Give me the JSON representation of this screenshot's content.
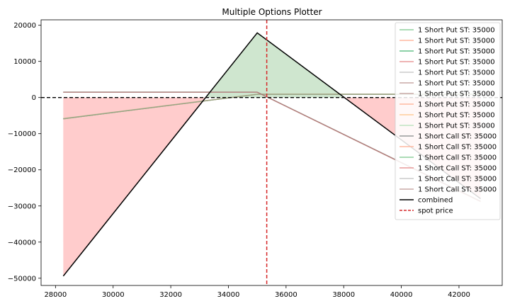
{
  "chart_data": {
    "type": "line",
    "title": "Multiple Options Plotter",
    "xlabel": "",
    "ylabel": "",
    "xlim": [
      27500,
      43500
    ],
    "ylim": [
      -52000,
      21500
    ],
    "x_ticks": [
      28000,
      30000,
      32000,
      34000,
      36000,
      38000,
      40000,
      42000
    ],
    "y_ticks": [
      20000,
      10000,
      0,
      -10000,
      -20000,
      -30000,
      -40000,
      -50000
    ],
    "x_tick_labels": [
      "28000",
      "30000",
      "32000",
      "34000",
      "36000",
      "38000",
      "40000",
      "42000"
    ],
    "y_tick_labels": [
      "20000",
      "10000",
      "0",
      "−10000",
      "−20000",
      "−30000",
      "−40000",
      "−50000"
    ],
    "zero_line": true,
    "grid": false,
    "legend_position": "top-right",
    "spot_price": 35330,
    "colors": {
      "profit_fill": "#cfe6cf",
      "loss_fill": "#ffcccc",
      "combined": "#000000",
      "spot": "#d62728",
      "put_line": "#7aa77a",
      "call_line": "#a06060"
    },
    "series": [
      {
        "name": "1 Short Put ST: 35000",
        "color": "#8fd19e",
        "x": [
          28270,
          35000,
          42750
        ],
        "y": [
          -5900,
          900,
          900
        ]
      },
      {
        "name": "1 Short Put ST: 35000",
        "color": "#ffb8a0",
        "x": [
          28270,
          35000,
          42750
        ],
        "y": [
          -5800,
          950,
          950
        ]
      },
      {
        "name": "1 Short Put ST: 35000",
        "color": "#66c28a",
        "x": [
          28270,
          35000,
          42750
        ],
        "y": [
          -5850,
          920,
          920
        ]
      },
      {
        "name": "1 Short Put ST: 35000",
        "color": "#e89a9a",
        "x": [
          28270,
          35000,
          42750
        ],
        "y": [
          -5900,
          900,
          900
        ]
      },
      {
        "name": "1 Short Put ST: 35000",
        "color": "#cccccc",
        "x": [
          28270,
          35000,
          42750
        ],
        "y": [
          -5800,
          950,
          950
        ]
      },
      {
        "name": "1 Short Put ST: 35000",
        "color": "#c9a9a6",
        "x": [
          28270,
          35000,
          42750
        ],
        "y": [
          -5850,
          920,
          920
        ]
      },
      {
        "name": "1 Short Put ST: 35000",
        "color": "#8fd19e",
        "x": [
          28270,
          35000,
          42750
        ],
        "y": [
          -5900,
          900,
          900
        ]
      },
      {
        "name": "1 Short Put ST: 35000",
        "color": "#ffb8a0",
        "x": [
          28270,
          35000,
          42750
        ],
        "y": [
          -5800,
          950,
          950
        ]
      },
      {
        "name": "1 Short Put ST: 35000",
        "color": "#66c28a",
        "x": [
          28270,
          35000,
          42750
        ],
        "y": [
          -5850,
          920,
          920
        ]
      },
      {
        "name": "1 Short Put ST: 35000",
        "color": "#e89a9a",
        "x": [
          28270,
          35000,
          42750
        ],
        "y": [
          -5900,
          900,
          900
        ]
      },
      {
        "name": "1 Short Call ST: 35000",
        "color": "#999999",
        "x": [
          28270,
          35000,
          42750
        ],
        "y": [
          1500,
          1500,
          -28700
        ]
      },
      {
        "name": "1 Short Call ST: 35000",
        "color": "#ffb8a0",
        "x": [
          28270,
          35000,
          42750
        ],
        "y": [
          1450,
          1450,
          -28800
        ]
      },
      {
        "name": "1 Short Call ST: 35000",
        "color": "#8fd19e",
        "x": [
          28270,
          35000,
          42750
        ],
        "y": [
          1500,
          1500,
          -28700
        ]
      },
      {
        "name": "1 Short Call ST: 35000",
        "color": "#e89a9a",
        "x": [
          28270,
          35000,
          42750
        ],
        "y": [
          1450,
          1450,
          -28800
        ]
      },
      {
        "name": "1 Short Call ST: 35000",
        "color": "#cccccc",
        "x": [
          28270,
          35000,
          42750
        ],
        "y": [
          1500,
          1500,
          -28700
        ]
      },
      {
        "name": "1 Short Call ST: 35000",
        "color": "#c9a9a6",
        "x": [
          28270,
          35000,
          42750
        ],
        "y": [
          1450,
          1450,
          -28800
        ]
      }
    ],
    "combined": {
      "name": "combined",
      "color": "#000000",
      "x": [
        28270,
        35000,
        42750
      ],
      "y": [
        -49400,
        17900,
        -28000
      ]
    },
    "legend": [
      {
        "label": "1 Short Put ST: 35000",
        "color": "#8fd19e",
        "style": "solid"
      },
      {
        "label": "1 Short Put ST: 35000",
        "color": "#ffb8a0",
        "style": "solid"
      },
      {
        "label": "1 Short Put ST: 35000",
        "color": "#66c28a",
        "style": "solid"
      },
      {
        "label": "1 Short Put ST: 35000",
        "color": "#e89a9a",
        "style": "solid"
      },
      {
        "label": "1 Short Put ST: 35000",
        "color": "#cccccc",
        "style": "solid"
      },
      {
        "label": "1 Short Put ST: 35000",
        "color": "#c9a9a6",
        "style": "solid"
      },
      {
        "label": "1 Short Put ST: 35000",
        "color": "#c9a9a6",
        "style": "solid"
      },
      {
        "label": "1 Short Put ST: 35000",
        "color": "#ffb8a0",
        "style": "solid"
      },
      {
        "label": "1 Short Put ST: 35000",
        "color": "#ffcc99",
        "style": "solid"
      },
      {
        "label": "1 Short Put ST: 35000",
        "color": "#bfe3bf",
        "style": "solid"
      },
      {
        "label": "1 Short Call ST: 35000",
        "color": "#999999",
        "style": "solid"
      },
      {
        "label": "1 Short Call ST: 35000",
        "color": "#ffb8a0",
        "style": "solid"
      },
      {
        "label": "1 Short Call ST: 35000",
        "color": "#8fd19e",
        "style": "solid"
      },
      {
        "label": "1 Short Call ST: 35000",
        "color": "#e89a9a",
        "style": "solid"
      },
      {
        "label": "1 Short Call ST: 35000",
        "color": "#cccccc",
        "style": "solid"
      },
      {
        "label": "1 Short Call ST: 35000",
        "color": "#c9a9a6",
        "style": "solid"
      },
      {
        "label": "combined",
        "color": "#000000",
        "style": "solid"
      },
      {
        "label": "spot price",
        "color": "#d62728",
        "style": "dashed"
      }
    ]
  }
}
